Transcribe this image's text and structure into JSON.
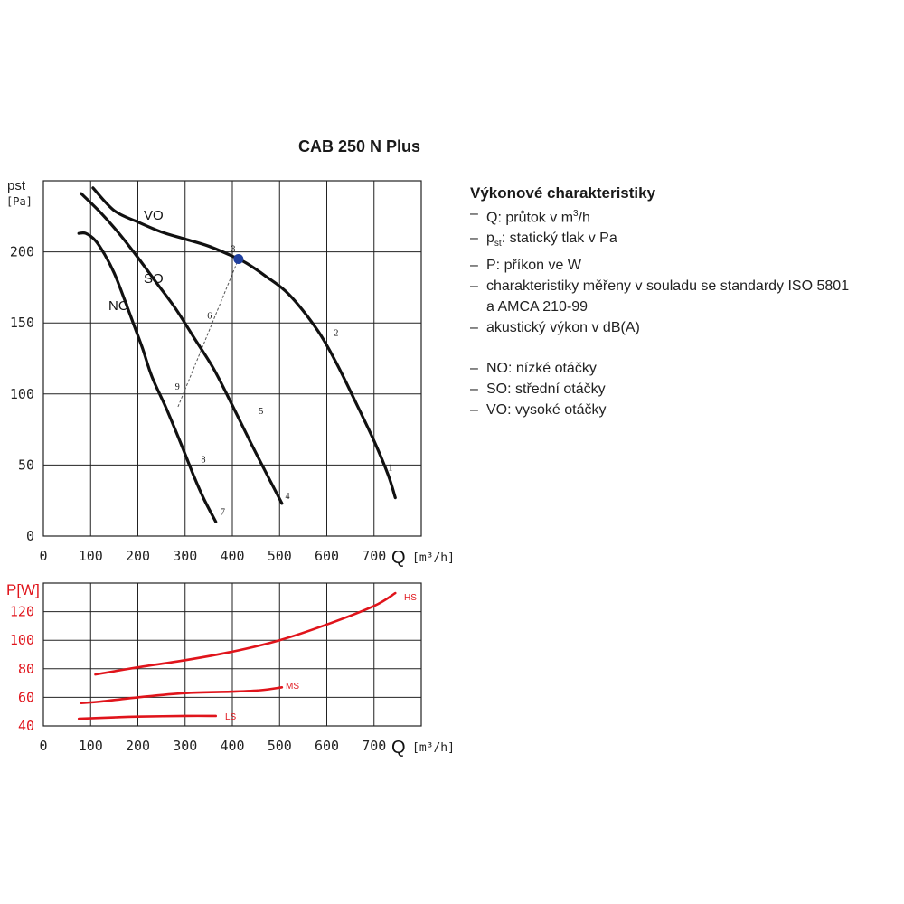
{
  "title": "CAB 250 N Plus",
  "chart_data": [
    {
      "type": "line",
      "name": "pressure",
      "ylabel_top": "pst",
      "ylabel_bottom": "[Pa]",
      "xlabel_q": "Q",
      "xlabel_unit": "[m³/h]",
      "xlim": [
        0,
        800
      ],
      "ylim": [
        0,
        250
      ],
      "xticks": [
        "0",
        "100",
        "200",
        "300",
        "400",
        "500",
        "600",
        "700"
      ],
      "yticks": [
        "0",
        "50",
        "100",
        "150",
        "200"
      ],
      "grid": true,
      "series": [
        {
          "name": "VO",
          "x": [
            105,
            150,
            200,
            250,
            300,
            350,
            400,
            430,
            470,
            520,
            580,
            620,
            660,
            700,
            730,
            745
          ],
          "y": [
            245,
            229,
            221,
            214,
            209,
            204,
            197,
            192,
            183,
            170,
            145,
            122,
            95,
            67,
            43,
            27
          ]
        },
        {
          "name": "SO",
          "x": [
            80,
            120,
            160,
            200,
            240,
            280,
            320,
            360,
            400,
            440,
            480,
            505
          ],
          "y": [
            241,
            228,
            213,
            196,
            178,
            160,
            139,
            118,
            92,
            65,
            39,
            23
          ]
        },
        {
          "name": "NO",
          "x": [
            75,
            90,
            110,
            130,
            150,
            170,
            190,
            210,
            230,
            260,
            290,
            320,
            340,
            365
          ],
          "y": [
            213,
            213,
            208,
            198,
            185,
            168,
            150,
            132,
            112,
            90,
            66,
            41,
            26,
            10
          ]
        }
      ],
      "system_line": {
        "x": [
          285,
          413
        ],
        "y": [
          91,
          195
        ]
      },
      "operating_point": {
        "x": 413,
        "y": 195
      },
      "point_labels": [
        {
          "text": "1",
          "x": 730,
          "y": 46
        },
        {
          "text": "2",
          "x": 615,
          "y": 141
        },
        {
          "text": "3",
          "x": 397,
          "y": 200
        },
        {
          "text": "4",
          "x": 512,
          "y": 26
        },
        {
          "text": "5",
          "x": 456,
          "y": 86
        },
        {
          "text": "6",
          "x": 347,
          "y": 153
        },
        {
          "text": "7",
          "x": 375,
          "y": 15
        },
        {
          "text": "8",
          "x": 334,
          "y": 52
        },
        {
          "text": "9",
          "x": 279,
          "y": 103
        }
      ]
    },
    {
      "type": "line",
      "name": "power",
      "ylabel": "P[W]",
      "xlabel_q": "Q",
      "xlabel_unit": "[m³/h]",
      "xlim": [
        0,
        800
      ],
      "ylim": [
        40,
        140
      ],
      "xticks": [
        "0",
        "100",
        "200",
        "300",
        "400",
        "500",
        "600",
        "700"
      ],
      "yticks": [
        "40",
        "60",
        "80",
        "100",
        "120"
      ],
      "grid": true,
      "series": [
        {
          "name": "HS",
          "x": [
            110,
            200,
            300,
            400,
            500,
            600,
            700,
            745
          ],
          "y": [
            76,
            81,
            86,
            92,
            100,
            111,
            124,
            133
          ]
        },
        {
          "name": "MS",
          "x": [
            80,
            120,
            200,
            300,
            400,
            460,
            505
          ],
          "y": [
            56,
            57,
            60,
            63,
            64,
            65,
            67
          ]
        },
        {
          "name": "LS",
          "x": [
            75,
            150,
            200,
            300,
            365
          ],
          "y": [
            45,
            46,
            46.5,
            47,
            47
          ]
        }
      ]
    }
  ],
  "info": {
    "heading": "Výkonové charakteristiky",
    "dash": "–",
    "q_line": "Q: průtok v m",
    "q_sup": "3",
    "q_tail": "/h",
    "p_main": "p",
    "p_sub": "st",
    "p_tail": ": statický tlak v Pa",
    "power_line": "P: příkon ve W",
    "standards_line": "charakteristiky měřeny v souladu se standardy ISO 5801",
    "standards_cont": "a AMCA 210-99",
    "acoustic_line": "akustický výkon v dB(A)",
    "no_line": "NO: nízké otáčky",
    "so_line": "SO: střední otáčky",
    "vo_line": "VO: vysoké otáčky"
  },
  "colors": {
    "pressure_curves": "#111111",
    "power_curves": "#e0141b",
    "operating_point": "#1f3f9e",
    "grid": "#222222"
  }
}
